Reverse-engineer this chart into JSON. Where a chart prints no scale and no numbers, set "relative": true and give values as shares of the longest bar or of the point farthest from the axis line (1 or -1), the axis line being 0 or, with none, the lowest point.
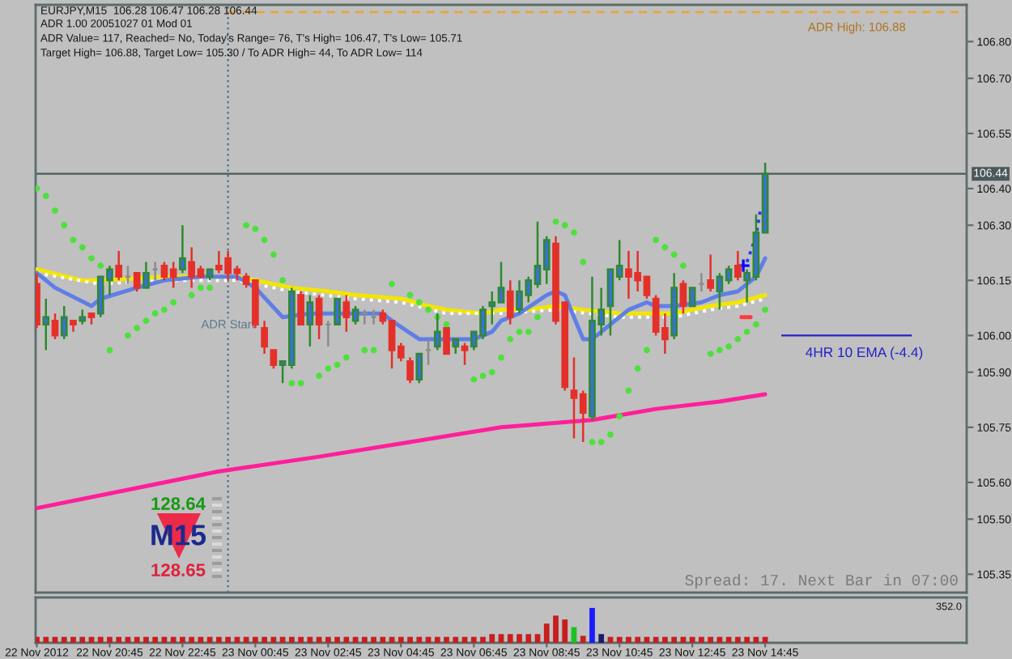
{
  "chart_data": [
    {
      "type": "candlestick",
      "title": "EURJPY,M15  106.28 106.47 106.28 106.44",
      "subtitle": "ADR 1.00 20051027 01 Mod 01",
      "annotations": [
        "ADR Value= 117, Reached= No, Today's Range= 76, T's High= 106.47, T's Low= 105.71",
        "Target High= 106.88, Target Low= 105.30 / To ADR High= 44, To ADR Low= 114",
        "Spread: 17. Next Bar in 07:00",
        "128.64",
        "M15",
        "128.65"
      ],
      "x": [
        "2012-11-22T18:45",
        "2012-11-22T19:00",
        "2012-11-22T19:15",
        "2012-11-22T19:30",
        "2012-11-22T19:45",
        "2012-11-22T20:00",
        "2012-11-22T20:15",
        "2012-11-22T20:30",
        "2012-11-22T20:45",
        "2012-11-22T21:00",
        "2012-11-22T21:15",
        "2012-11-22T21:30",
        "2012-11-22T21:45",
        "2012-11-22T22:00",
        "2012-11-22T22:15",
        "2012-11-22T22:30",
        "2012-11-22T22:45",
        "2012-11-22T23:00",
        "2012-11-22T23:15",
        "2012-11-22T23:30",
        "2012-11-22T23:45",
        "2012-11-23T00:00",
        "2012-11-23T00:15",
        "2012-11-23T00:30",
        "2012-11-23T00:45",
        "2012-11-23T01:00",
        "2012-11-23T01:15",
        "2012-11-23T01:30",
        "2012-11-23T01:45",
        "2012-11-23T02:00",
        "2012-11-23T02:15",
        "2012-11-23T02:30",
        "2012-11-23T02:45",
        "2012-11-23T03:00",
        "2012-11-23T03:15",
        "2012-11-23T03:30",
        "2012-11-23T03:45",
        "2012-11-23T04:00",
        "2012-11-23T04:15",
        "2012-11-23T04:30",
        "2012-11-23T04:45",
        "2012-11-23T05:00",
        "2012-11-23T05:15",
        "2012-11-23T05:30",
        "2012-11-23T05:45",
        "2012-11-23T06:00",
        "2012-11-23T06:15",
        "2012-11-23T06:30",
        "2012-11-23T06:45",
        "2012-11-23T07:00",
        "2012-11-23T07:15",
        "2012-11-23T07:30",
        "2012-11-23T07:45",
        "2012-11-23T08:00",
        "2012-11-23T08:15",
        "2012-11-23T08:30",
        "2012-11-23T08:45",
        "2012-11-23T09:00",
        "2012-11-23T09:15",
        "2012-11-23T09:30",
        "2012-11-23T09:45",
        "2012-11-23T10:00",
        "2012-11-23T10:15",
        "2012-11-23T10:30",
        "2012-11-23T10:45",
        "2012-11-23T11:00",
        "2012-11-23T11:15",
        "2012-11-23T11:30",
        "2012-11-23T11:45",
        "2012-11-23T12:00",
        "2012-11-23T12:15",
        "2012-11-23T12:30",
        "2012-11-23T12:45",
        "2012-11-23T13:00",
        "2012-11-23T13:15",
        "2012-11-23T13:30",
        "2012-11-23T13:45",
        "2012-11-23T14:00",
        "2012-11-23T14:15",
        "2012-11-23T14:30",
        "2012-11-23T14:45"
      ],
      "ohlc": [
        [
          106.14,
          106.17,
          106.02,
          106.03
        ],
        [
          106.03,
          106.1,
          105.96,
          106.05
        ],
        [
          106.04,
          106.06,
          105.99,
          106.0
        ],
        [
          106.0,
          106.08,
          105.99,
          106.05
        ],
        [
          106.04,
          106.04,
          106.01,
          106.03
        ],
        [
          106.04,
          106.07,
          106.03,
          106.05
        ],
        [
          106.06,
          106.06,
          106.03,
          106.05
        ],
        [
          106.06,
          106.16,
          106.05,
          106.16
        ],
        [
          106.15,
          106.19,
          106.11,
          106.18
        ],
        [
          106.19,
          106.23,
          106.15,
          106.16
        ],
        [
          106.16,
          106.19,
          106.14,
          106.16
        ],
        [
          106.17,
          106.17,
          106.12,
          106.13
        ],
        [
          106.13,
          106.2,
          106.13,
          106.17
        ],
        [
          106.18,
          106.2,
          106.15,
          106.18
        ],
        [
          106.19,
          106.2,
          106.15,
          106.16
        ],
        [
          106.18,
          106.2,
          106.13,
          106.16
        ],
        [
          106.18,
          106.3,
          106.17,
          106.21
        ],
        [
          106.2,
          106.24,
          106.13,
          106.16
        ],
        [
          106.18,
          106.19,
          106.16,
          106.16
        ],
        [
          106.16,
          106.18,
          106.15,
          106.18
        ],
        [
          106.19,
          106.23,
          106.17,
          106.18
        ],
        [
          106.21,
          106.23,
          106.15,
          106.17
        ],
        [
          106.18,
          106.19,
          106.15,
          106.17
        ],
        [
          106.16,
          106.17,
          106.13,
          106.14
        ],
        [
          106.15,
          106.15,
          106.02,
          106.03
        ],
        [
          106.02,
          106.04,
          105.95,
          105.97
        ],
        [
          105.96,
          105.96,
          105.91,
          105.92
        ],
        [
          105.92,
          105.93,
          105.87,
          105.93
        ],
        [
          105.92,
          106.13,
          105.91,
          106.12
        ],
        [
          106.11,
          106.12,
          106.03,
          106.03
        ],
        [
          106.03,
          106.11,
          105.97,
          106.09
        ],
        [
          106.1,
          106.11,
          105.99,
          106.03
        ],
        [
          106.03,
          106.04,
          105.97,
          106.03
        ],
        [
          106.03,
          106.1,
          106.03,
          106.1
        ],
        [
          106.09,
          106.11,
          106.01,
          106.05
        ],
        [
          106.04,
          106.08,
          106.03,
          106.07
        ],
        [
          106.06,
          106.07,
          106.03,
          106.06
        ],
        [
          106.05,
          106.07,
          106.03,
          106.05
        ],
        [
          106.06,
          106.07,
          106.03,
          106.04
        ],
        [
          106.04,
          106.04,
          105.91,
          105.96
        ],
        [
          105.97,
          105.98,
          105.93,
          105.94
        ],
        [
          105.93,
          105.94,
          105.87,
          105.88
        ],
        [
          105.88,
          105.95,
          105.87,
          105.95
        ],
        [
          105.96,
          105.99,
          105.92,
          105.96
        ],
        [
          105.97,
          106.06,
          105.96,
          106.01
        ],
        [
          106.02,
          106.02,
          105.95,
          105.95
        ],
        [
          105.97,
          105.99,
          105.95,
          105.99
        ],
        [
          105.97,
          105.98,
          105.92,
          105.96
        ],
        [
          105.97,
          106.01,
          105.96,
          106.01
        ],
        [
          106.0,
          106.08,
          105.99,
          106.07
        ],
        [
          106.08,
          106.12,
          106.03,
          106.09
        ],
        [
          106.09,
          106.2,
          106.09,
          106.13
        ],
        [
          106.12,
          106.15,
          106.03,
          106.05
        ],
        [
          106.07,
          106.15,
          106.06,
          106.12
        ],
        [
          106.11,
          106.16,
          106.09,
          106.15
        ],
        [
          106.14,
          106.31,
          106.13,
          106.19
        ],
        [
          106.18,
          106.27,
          106.14,
          106.26
        ],
        [
          106.25,
          106.27,
          106.03,
          106.04
        ],
        [
          106.09,
          106.09,
          105.85,
          105.86
        ],
        [
          105.85,
          105.94,
          105.72,
          105.83
        ],
        [
          105.84,
          105.85,
          105.71,
          105.79
        ],
        [
          105.78,
          106.16,
          105.77,
          106.04
        ],
        [
          106.03,
          106.13,
          106.0,
          106.07
        ],
        [
          106.08,
          106.18,
          106.0,
          106.18
        ],
        [
          106.16,
          106.26,
          106.15,
          106.19
        ],
        [
          106.18,
          106.23,
          106.1,
          106.16
        ],
        [
          106.17,
          106.23,
          106.12,
          106.15
        ],
        [
          106.16,
          106.16,
          106.1,
          106.11
        ],
        [
          106.1,
          106.11,
          106.0,
          106.01
        ],
        [
          106.02,
          106.06,
          105.95,
          105.99
        ],
        [
          106.0,
          106.17,
          105.99,
          106.13
        ],
        [
          106.14,
          106.15,
          106.06,
          106.08
        ],
        [
          106.08,
          106.13,
          106.08,
          106.13
        ],
        [
          106.14,
          106.17,
          106.12,
          106.14
        ],
        [
          106.15,
          106.22,
          106.12,
          106.13
        ],
        [
          106.12,
          106.17,
          106.07,
          106.16
        ],
        [
          106.15,
          106.19,
          106.14,
          106.18
        ],
        [
          106.19,
          106.23,
          106.15,
          106.16
        ],
        [
          106.15,
          106.18,
          106.09,
          106.17
        ],
        [
          106.16,
          106.33,
          106.15,
          106.28
        ],
        [
          106.28,
          106.47,
          106.28,
          106.44
        ]
      ],
      "colors": [
        "#e5302a",
        "#3b6fd6",
        "#e5302a",
        "#3b6fd6",
        "#e5302a",
        "#3b6fd6",
        "#e5302a",
        "#3b6fd6",
        "#3b6fd6",
        "#e5302a",
        "#8c8c8c",
        "#e5302a",
        "#3b6fd6",
        "#8c8c8c",
        "#e5302a",
        "#e5302a",
        "#3b6fd6",
        "#e5302a",
        "#e5302a",
        "#3b6fd6",
        "#e5302a",
        "#e5302a",
        "#e5302a",
        "#e5302a",
        "#e5302a",
        "#e5302a",
        "#e5302a",
        "#3b6fd6",
        "#3b6fd6",
        "#e5302a",
        "#3b6fd6",
        "#e5302a",
        "#8c8c8c",
        "#3b6fd6",
        "#e5302a",
        "#3b6fd6",
        "#8c8c8c",
        "#8c8c8c",
        "#e5302a",
        "#e5302a",
        "#e5302a",
        "#e5302a",
        "#3b6fd6",
        "#8c8c8c",
        "#3b6fd6",
        "#e5302a",
        "#3b6fd6",
        "#e5302a",
        "#3b6fd6",
        "#3b6fd6",
        "#3b6fd6",
        "#3b6fd6",
        "#e5302a",
        "#3b6fd6",
        "#3b6fd6",
        "#3b6fd6",
        "#3b6fd6",
        "#e5302a",
        "#e5302a",
        "#e5302a",
        "#e5302a",
        "#3b6fd6",
        "#3b6fd6",
        "#3b6fd6",
        "#3b6fd6",
        "#e5302a",
        "#e5302a",
        "#e5302a",
        "#e5302a",
        "#e5302a",
        "#3b6fd6",
        "#e5302a",
        "#3b6fd6",
        "#8c8c8c",
        "#e5302a",
        "#3b6fd6",
        "#3b6fd6",
        "#e5302a",
        "#3b6fd6",
        "#3b6fd6",
        "#3b6fd6"
      ],
      "color": "#2e8a2e",
      "series": [
        {
          "type": "line",
          "color": "#f2e600",
          "x": [
            "2012-11-22T18:45",
            "2012-11-22T20:00",
            "2012-11-22T20:30",
            "2012-11-22T22:15",
            "2012-11-23T00:15",
            "2012-11-23T00:45",
            "2012-11-23T01:45",
            "2012-11-23T02:45",
            "2012-11-23T03:30",
            "2012-11-23T04:45",
            "2012-11-23T05:30",
            "2012-11-23T06:00",
            "2012-11-23T07:00",
            "2012-11-23T07:30",
            "2012-11-23T08:15",
            "2012-11-23T09:00",
            "2012-11-23T09:45",
            "2012-11-23T10:45",
            "2012-11-23T12:15",
            "2012-11-23T13:15",
            "2012-11-23T14:00",
            "2012-11-23T14:45"
          ],
          "values": [
            106.18,
            106.15,
            106.15,
            106.16,
            106.16,
            106.15,
            106.13,
            106.12,
            106.11,
            106.1,
            106.08,
            106.07,
            106.06,
            106.07,
            106.07,
            106.08,
            106.07,
            106.06,
            106.06,
            106.08,
            106.09,
            106.11
          ]
        },
        {
          "type": "line",
          "color": "#ffffff",
          "line_style": "dotted",
          "x": [
            "2012-11-22T18:45",
            "2012-11-22T20:30",
            "2012-11-22T22:15",
            "2012-11-23T00:15",
            "2012-11-23T01:45",
            "2012-11-23T03:30",
            "2012-11-23T04:45",
            "2012-11-23T06:00",
            "2012-11-23T07:30",
            "2012-11-23T09:00",
            "2012-11-23T10:45",
            "2012-11-23T12:15",
            "2012-11-23T13:15",
            "2012-11-23T14:00",
            "2012-11-23T14:45"
          ],
          "values": [
            106.17,
            106.14,
            106.15,
            106.15,
            106.12,
            106.1,
            106.09,
            106.06,
            106.06,
            106.07,
            106.05,
            106.05,
            106.07,
            106.08,
            106.1
          ]
        },
        {
          "type": "line",
          "color": "#5f7fe6",
          "x": [
            "2012-11-22T18:45",
            "2012-11-22T19:15",
            "2012-11-22T20:15",
            "2012-11-22T20:30",
            "2012-11-22T21:30",
            "2012-11-22T22:15",
            "2012-11-22T23:15",
            "2012-11-23T00:15",
            "2012-11-23T00:45",
            "2012-11-23T01:30",
            "2012-11-23T02:15",
            "2012-11-23T03:15",
            "2012-11-23T04:15",
            "2012-11-23T04:30",
            "2012-11-23T05:15",
            "2012-11-23T06:15",
            "2012-11-23T06:45",
            "2012-11-23T07:15",
            "2012-11-23T07:30",
            "2012-11-23T08:00",
            "2012-11-23T08:45",
            "2012-11-23T09:00",
            "2012-11-23T09:15",
            "2012-11-23T09:45",
            "2012-11-23T10:00",
            "2012-11-23T10:30",
            "2012-11-23T11:00",
            "2012-11-23T11:30",
            "2012-11-23T11:45",
            "2012-11-23T12:15",
            "2012-11-23T13:00",
            "2012-11-23T13:30",
            "2012-11-23T14:00",
            "2012-11-23T14:30",
            "2012-11-23T14:45"
          ],
          "values": [
            106.17,
            106.13,
            106.08,
            106.1,
            106.13,
            106.15,
            106.16,
            106.16,
            106.13,
            106.05,
            106.06,
            106.06,
            106.06,
            106.04,
            105.99,
            105.99,
            105.99,
            106.01,
            106.04,
            106.06,
            106.11,
            106.12,
            106.11,
            105.99,
            105.99,
            106.03,
            106.07,
            106.09,
            106.08,
            106.08,
            106.09,
            106.11,
            106.12,
            106.16,
            106.21
          ]
        },
        {
          "type": "line",
          "color": "#ff1f9a",
          "x": [
            "2012-11-22T18:45",
            "2012-11-22T21:15",
            "2012-11-22T23:45",
            "2012-11-23T02:30",
            "2012-11-23T05:00",
            "2012-11-23T07:30",
            "2012-11-23T10:00",
            "2012-11-23T11:45",
            "2012-11-23T13:30",
            "2012-11-23T14:45"
          ],
          "values": [
            105.53,
            105.58,
            105.63,
            105.67,
            105.71,
            105.75,
            105.77,
            105.8,
            105.82,
            105.84
          ]
        },
        {
          "type": "scatter",
          "color": "#4ee03c",
          "marker": "circle",
          "x": [
            "2012-11-22T18:45",
            "2012-11-22T19:00",
            "2012-11-22T19:15",
            "2012-11-22T19:30",
            "2012-11-22T19:45",
            "2012-11-22T20:00",
            "2012-11-22T20:15",
            "2012-11-22T20:30",
            "2012-11-22T20:45",
            "2012-11-22T21:15",
            "2012-11-22T21:30",
            "2012-11-22T21:45",
            "2012-11-22T22:00",
            "2012-11-22T22:15",
            "2012-11-22T22:30",
            "2012-11-22T23:00",
            "2012-11-22T23:15",
            "2012-11-22T23:30",
            "2012-11-23T00:30",
            "2012-11-23T00:45",
            "2012-11-23T01:00",
            "2012-11-23T01:15",
            "2012-11-23T01:30",
            "2012-11-23T01:45",
            "2012-11-23T02:00",
            "2012-11-23T02:30",
            "2012-11-23T02:45",
            "2012-11-23T03:00",
            "2012-11-23T03:15",
            "2012-11-23T03:45",
            "2012-11-23T04:00",
            "2012-11-23T04:30",
            "2012-11-23T05:00",
            "2012-11-23T05:15",
            "2012-11-23T05:30",
            "2012-11-23T05:45",
            "2012-11-23T06:00",
            "2012-11-23T06:45",
            "2012-11-23T07:00",
            "2012-11-23T07:15",
            "2012-11-23T07:30",
            "2012-11-23T07:45",
            "2012-11-23T08:00",
            "2012-11-23T08:15",
            "2012-11-23T08:30",
            "2012-11-23T09:00",
            "2012-11-23T09:15",
            "2012-11-23T09:30",
            "2012-11-23T09:45",
            "2012-11-23T10:00",
            "2012-11-23T10:15",
            "2012-11-23T10:30",
            "2012-11-23T10:45",
            "2012-11-23T11:00",
            "2012-11-23T11:15",
            "2012-11-23T11:30",
            "2012-11-23T11:45",
            "2012-11-23T12:00",
            "2012-11-23T12:15",
            "2012-11-23T12:30",
            "2012-11-23T13:15",
            "2012-11-23T13:30",
            "2012-11-23T13:45",
            "2012-11-23T14:00",
            "2012-11-23T14:15",
            "2012-11-23T14:30",
            "2012-11-23T14:45"
          ],
          "values": [
            106.4,
            106.38,
            106.34,
            106.3,
            106.26,
            106.24,
            106.21,
            106.19,
            105.96,
            106.0,
            106.02,
            106.04,
            106.06,
            106.07,
            106.09,
            106.11,
            106.13,
            106.13,
            106.3,
            106.29,
            106.26,
            106.22,
            106.15,
            105.87,
            105.87,
            105.89,
            105.91,
            105.92,
            105.94,
            105.96,
            105.96,
            106.14,
            106.11,
            106.09,
            106.07,
            106.05,
            106.03,
            105.88,
            105.89,
            105.9,
            105.94,
            105.99,
            106.01,
            106.01,
            106.05,
            106.31,
            106.3,
            106.28,
            106.2,
            105.71,
            105.71,
            105.73,
            105.78,
            105.85,
            105.91,
            105.96,
            106.26,
            106.24,
            106.22,
            106.19,
            105.95,
            105.96,
            105.97,
            105.99,
            106.01,
            106.03,
            106.07
          ]
        },
        {
          "type": "line",
          "color": "#2a3cf0",
          "line_style": "dotted",
          "x": [
            "2012-11-23T14:15",
            "2012-11-23T14:30",
            "2012-11-23T14:38"
          ],
          "values": [
            106.2,
            106.27,
            106.35
          ]
        },
        {
          "type": "scatter",
          "color": "#0a0aff",
          "marker": "cross",
          "x": [
            "2012-11-23T14:09"
          ],
          "values": [
            106.19
          ]
        },
        {
          "type": "line",
          "color": "#ff3c3c",
          "x": [
            "2012-11-23T14:06",
            "2012-11-23T14:21"
          ],
          "values": [
            106.05,
            106.05
          ]
        }
      ],
      "ref_lines": [
        {
          "axis": "x",
          "value": "2012-11-23T00:00",
          "label": "ADR Start",
          "color": "#5a7a90",
          "line_style": "dotted"
        },
        {
          "axis": "y",
          "value": 106.88,
          "label": "ADR High: 106.88",
          "color": "#f0a030",
          "line_style": "dashed"
        },
        {
          "axis": "y",
          "value": 106.44,
          "label": "106.44",
          "color": "#4a5858",
          "line_style": "solid"
        },
        {
          "axis": "y",
          "value": 106.0,
          "label": "4HR 10 EMA (-4.4)",
          "color": "#2222c8",
          "line_style": "solid"
        }
      ],
      "xlim": [
        "2012-11-22T18:43",
        "2012-11-23T20:17"
      ],
      "ylim": [
        105.3,
        106.9
      ],
      "yticks": [
        {
          "value": 106.8,
          "label": "106.80"
        },
        {
          "value": 106.7,
          "label": "106.70"
        },
        106.55,
        {
          "value": 106.4,
          "label": "106.40"
        },
        {
          "value": 106.3,
          "label": "106.30"
        },
        106.15,
        {
          "value": 106.0,
          "label": "106.00"
        },
        {
          "value": 105.9,
          "label": "105.90"
        },
        105.75,
        {
          "value": 105.6,
          "label": "105.60"
        },
        {
          "value": 105.5,
          "label": "105.50"
        },
        105.35
      ],
      "tick_labels": "y"
    },
    {
      "type": "bar",
      "relative": true,
      "annotations": [
        "352.0"
      ],
      "x": [
        "2012-11-22T18:45",
        "2012-11-22T19:00",
        "2012-11-22T19:15",
        "2012-11-22T19:30",
        "2012-11-22T19:45",
        "2012-11-22T20:00",
        "2012-11-22T20:15",
        "2012-11-22T20:30",
        "2012-11-22T20:45",
        "2012-11-22T21:00",
        "2012-11-22T21:15",
        "2012-11-22T21:30",
        "2012-11-22T21:45",
        "2012-11-22T22:00",
        "2012-11-22T22:15",
        "2012-11-22T22:30",
        "2012-11-22T22:45",
        "2012-11-22T23:00",
        "2012-11-22T23:15",
        "2012-11-22T23:30",
        "2012-11-22T23:45",
        "2012-11-23T00:00",
        "2012-11-23T00:15",
        "2012-11-23T00:30",
        "2012-11-23T00:45",
        "2012-11-23T01:00",
        "2012-11-23T01:15",
        "2012-11-23T01:30",
        "2012-11-23T01:45",
        "2012-11-23T02:00",
        "2012-11-23T02:15",
        "2012-11-23T02:30",
        "2012-11-23T02:45",
        "2012-11-23T03:00",
        "2012-11-23T03:15",
        "2012-11-23T03:30",
        "2012-11-23T03:45",
        "2012-11-23T04:00",
        "2012-11-23T04:15",
        "2012-11-23T04:30",
        "2012-11-23T04:45",
        "2012-11-23T05:00",
        "2012-11-23T05:15",
        "2012-11-23T05:30",
        "2012-11-23T05:45",
        "2012-11-23T06:00",
        "2012-11-23T06:15",
        "2012-11-23T06:30",
        "2012-11-23T06:45",
        "2012-11-23T07:00",
        "2012-11-23T07:15",
        "2012-11-23T07:30",
        "2012-11-23T07:45",
        "2012-11-23T08:00",
        "2012-11-23T08:15",
        "2012-11-23T08:30",
        "2012-11-23T08:45",
        "2012-11-23T09:00",
        "2012-11-23T09:15",
        "2012-11-23T09:30",
        "2012-11-23T09:45",
        "2012-11-23T10:00",
        "2012-11-23T10:15",
        "2012-11-23T10:30",
        "2012-11-23T10:45",
        "2012-11-23T11:00",
        "2012-11-23T11:15",
        "2012-11-23T11:30",
        "2012-11-23T11:45",
        "2012-11-23T12:00",
        "2012-11-23T12:15",
        "2012-11-23T12:30",
        "2012-11-23T12:45",
        "2012-11-23T13:00",
        "2012-11-23T13:15",
        "2012-11-23T13:30",
        "2012-11-23T13:45",
        "2012-11-23T14:00",
        "2012-11-23T14:15",
        "2012-11-23T14:30",
        "2012-11-23T14:45"
      ],
      "values": [
        0.17,
        0.17,
        0.17,
        0.17,
        0.17,
        0.17,
        0.17,
        0.17,
        0.17,
        0.17,
        0.17,
        0.17,
        0.17,
        0.17,
        0.17,
        0.17,
        0.17,
        0.17,
        0.17,
        0.17,
        0.17,
        0.17,
        0.17,
        0.17,
        0.17,
        0.17,
        0.17,
        0.17,
        0.17,
        0.17,
        0.17,
        0.17,
        0.17,
        0.17,
        0.17,
        0.17,
        0.17,
        0.17,
        0.17,
        0.17,
        0.17,
        0.17,
        0.17,
        0.17,
        0.17,
        0.17,
        0.17,
        0.17,
        0.17,
        0.17,
        0.25,
        0.25,
        0.25,
        0.25,
        0.25,
        0.25,
        0.55,
        0.78,
        0.67,
        0.45,
        0.2,
        1,
        0.25,
        0.17,
        0.17,
        0.17,
        0.17,
        0.17,
        0.17,
        0.17,
        0.17,
        0.17,
        0.17,
        0.17,
        0.17,
        0.17,
        0.17,
        0.17,
        0.17,
        0.17,
        0.17
      ],
      "colors": [
        "#c81e1e",
        "#c81e1e",
        "#c81e1e",
        "#c81e1e",
        "#c81e1e",
        "#c81e1e",
        "#c81e1e",
        "#c81e1e",
        "#c81e1e",
        "#c81e1e",
        "#c81e1e",
        "#c81e1e",
        "#c81e1e",
        "#c81e1e",
        "#c81e1e",
        "#c81e1e",
        "#c81e1e",
        "#c81e1e",
        "#c81e1e",
        "#c81e1e",
        "#c81e1e",
        "#c81e1e",
        "#c81e1e",
        "#c81e1e",
        "#c81e1e",
        "#c81e1e",
        "#c81e1e",
        "#c81e1e",
        "#c81e1e",
        "#c81e1e",
        "#c81e1e",
        "#c81e1e",
        "#c81e1e",
        "#c81e1e",
        "#c81e1e",
        "#c81e1e",
        "#c81e1e",
        "#c81e1e",
        "#c81e1e",
        "#c81e1e",
        "#c81e1e",
        "#c81e1e",
        "#c81e1e",
        "#c81e1e",
        "#c81e1e",
        "#c81e1e",
        "#c81e1e",
        "#c81e1e",
        "#c81e1e",
        "#c81e1e",
        "#c81e1e",
        "#c81e1e",
        "#c81e1e",
        "#c81e1e",
        "#c81e1e",
        "#c81e1e",
        "#c81e1e",
        "#c81e1e",
        "#c81e1e",
        "#20c020",
        "#c81e1e",
        "#1a1aff",
        "#1a1a6a",
        "#c81e1e",
        "#c81e1e",
        "#c81e1e",
        "#c81e1e",
        "#c81e1e",
        "#c81e1e",
        "#c81e1e",
        "#c81e1e",
        "#c81e1e",
        "#c81e1e",
        "#c81e1e",
        "#c81e1e",
        "#c81e1e",
        "#c81e1e",
        "#c81e1e",
        "#c81e1e",
        "#c81e1e",
        "#c81e1e"
      ],
      "xlim": [
        "2012-11-22T18:43",
        "2012-11-23T20:17"
      ],
      "xticks": [
        {
          "value": "2012-11-22T18:45",
          "label": "22 Nov 2012"
        },
        {
          "value": "2012-11-22T20:45",
          "label": "22 Nov 20:45"
        },
        {
          "value": "2012-11-22T22:45",
          "label": "22 Nov 22:45"
        },
        {
          "value": "2012-11-23T00:45",
          "label": "23 Nov 00:45"
        },
        {
          "value": "2012-11-23T02:45",
          "label": "23 Nov 02:45"
        },
        {
          "value": "2012-11-23T04:45",
          "label": "23 Nov 04:45"
        },
        {
          "value": "2012-11-23T06:45",
          "label": "23 Nov 06:45"
        },
        {
          "value": "2012-11-23T08:45",
          "label": "23 Nov 08:45"
        },
        {
          "value": "2012-11-23T10:45",
          "label": "23 Nov 10:45"
        },
        {
          "value": "2012-11-23T12:45",
          "label": "23 Nov 12:45"
        },
        {
          "value": "2012-11-23T14:45",
          "label": "23 Nov 14:45"
        }
      ],
      "tick_labels": "x"
    }
  ]
}
